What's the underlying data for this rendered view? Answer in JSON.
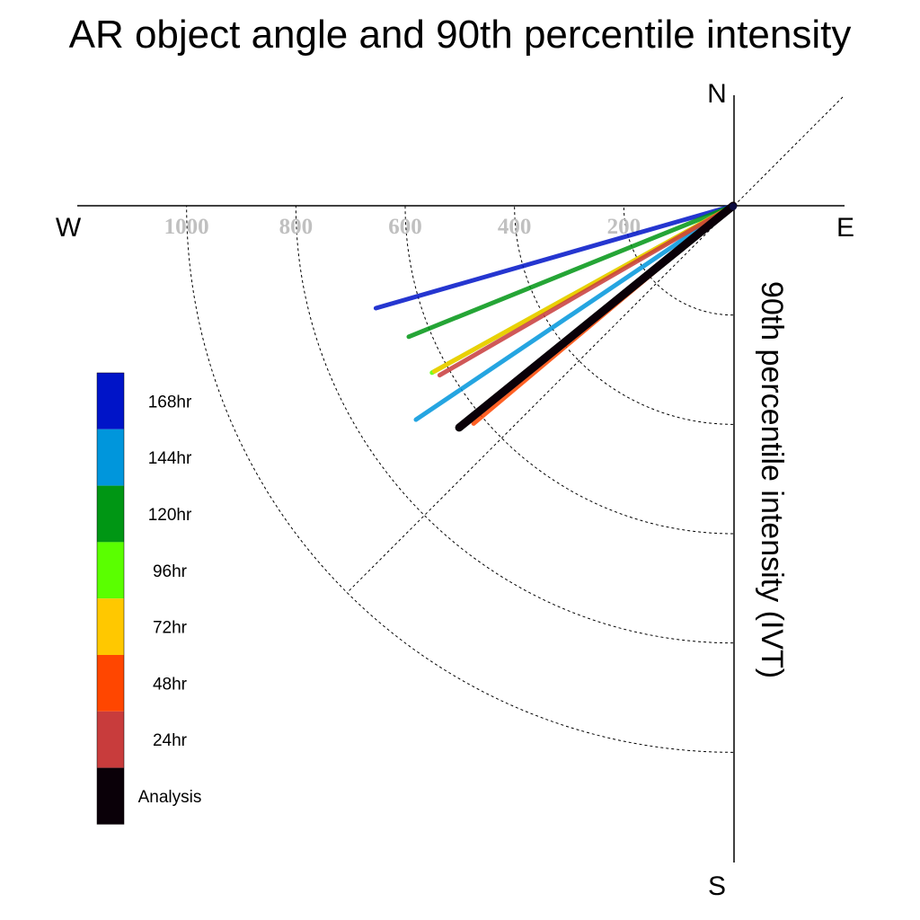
{
  "chart_data": {
    "type": "polar-line",
    "title": "AR object angle and 90th percentile intensity",
    "ylabel": "90th percentile intensity (IVT)",
    "compass": {
      "north": "N",
      "south": "S",
      "east": "E",
      "west": "W"
    },
    "radial_ticks": [
      "200",
      "400",
      "600",
      "800",
      "1000"
    ],
    "rlim": [
      0,
      1200
    ],
    "series": [
      {
        "name": "168hr",
        "color": "#0014c8",
        "angle_deg": 254,
        "intensity": 680
      },
      {
        "name": "144hr",
        "color": "#0096dc",
        "angle_deg": 236,
        "intensity": 700
      },
      {
        "name": "120hr",
        "color": "#009614",
        "angle_deg": 248,
        "intensity": 640
      },
      {
        "name": "96hr",
        "color": "#5aff00",
        "angle_deg": 241,
        "intensity": 630
      },
      {
        "name": "72hr",
        "color": "#ffc800",
        "angle_deg": 241,
        "intensity": 625
      },
      {
        "name": "48hr",
        "color": "#ff4600",
        "angle_deg": 230,
        "intensity": 620
      },
      {
        "name": "24hr",
        "color": "#c83c3c",
        "angle_deg": 240,
        "intensity": 620
      },
      {
        "name": "Analysis",
        "color": "#0a0008",
        "angle_deg": 231,
        "intensity": 645
      }
    ]
  }
}
